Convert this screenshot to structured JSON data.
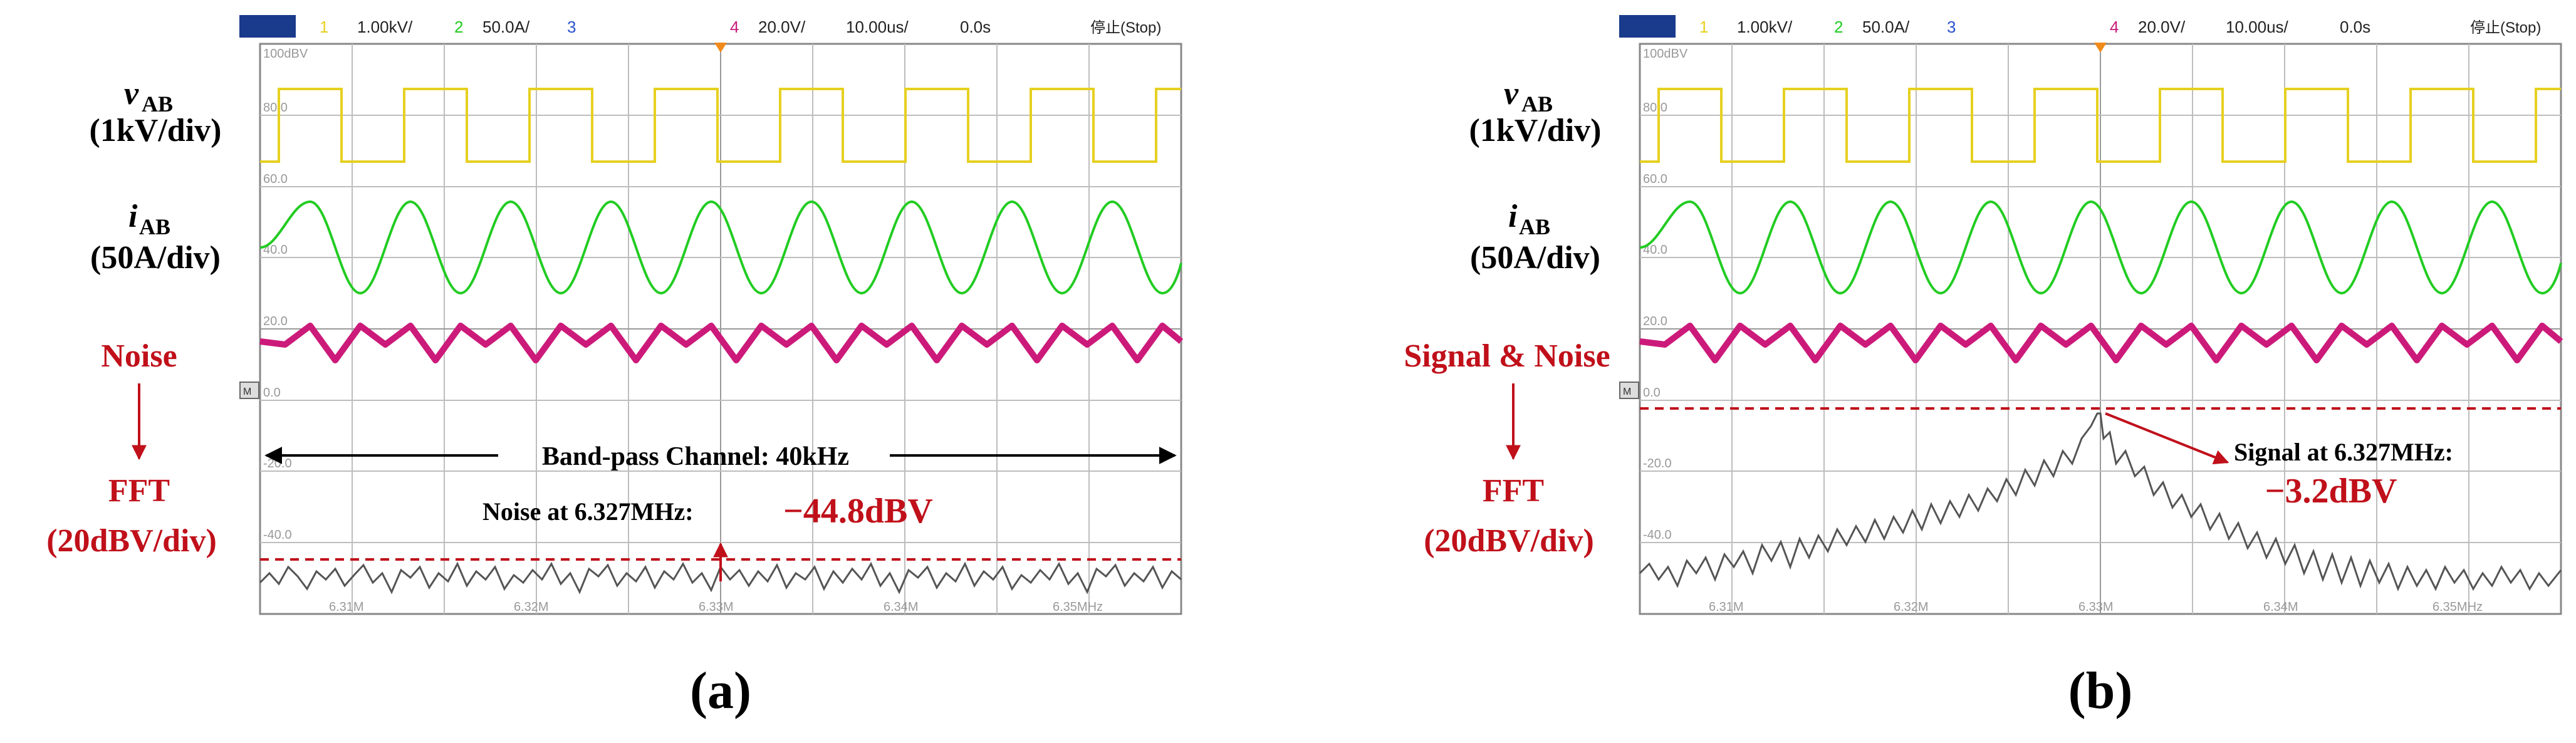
{
  "colors": {
    "ch1": "#e6d020",
    "ch2": "#22cc22",
    "ch3": "#2a52d0",
    "ch4": "#cc1a7a",
    "fft": "#555555",
    "annotation": "#c0101a",
    "grid": "#bdbdbd",
    "status_bar_bg": "#1a3a8c"
  },
  "icons": {
    "trigger_marker": "orange-triangle-down",
    "math_channel_marker": "math-icon"
  },
  "panels": [
    {
      "id": "a",
      "caption": "(a)",
      "status": {
        "ch1_num": "1",
        "ch1_scale": "1.00kV/",
        "ch2_num": "2",
        "ch2_scale": "50.0A/",
        "ch3_num": "3",
        "ch4_num": "4",
        "ch4_scale": "20.0V/",
        "timebase": "10.00us/",
        "delay": "0.0s",
        "run_state": "停止(Stop)"
      },
      "screen": {
        "top_scale": "100dBV",
        "v_labels": [
          "80.0",
          "60.0",
          "40.0",
          "20.0",
          "0.0",
          "-20.0",
          "-40.0"
        ],
        "freq_ticks": [
          "6.31M",
          "6.32M",
          "6.33M",
          "6.34M",
          "6.35MHz"
        ]
      },
      "labels": {
        "vab": "v",
        "vab_sub": "AB",
        "vab_scale": "(1kV/div)",
        "iab": "i",
        "iab_sub": "AB",
        "iab_scale": "(50A/div)",
        "source": "Noise",
        "fft": "FFT",
        "fft_scale": "(20dBV/div)"
      },
      "annotations": {
        "bandpass": "Band-pass Channel: 40kHz",
        "measure_prefix": "Noise at 6.327MHz:",
        "measure_value": "−44.8dBV"
      }
    },
    {
      "id": "b",
      "caption": "(b)",
      "status": {
        "ch1_num": "1",
        "ch1_scale": "1.00kV/",
        "ch2_num": "2",
        "ch2_scale": "50.0A/",
        "ch3_num": "3",
        "ch4_num": "4",
        "ch4_scale": "20.0V/",
        "timebase": "10.00us/",
        "delay": "0.0s",
        "run_state": "停止(Stop)"
      },
      "screen": {
        "top_scale": "100dBV",
        "v_labels": [
          "80.0",
          "60.0",
          "40.0",
          "20.0",
          "0.0",
          "-20.0",
          "-40.0"
        ],
        "freq_ticks": [
          "6.31M",
          "6.32M",
          "6.33M",
          "6.34M",
          "6.35MHz"
        ]
      },
      "labels": {
        "vab": "v",
        "vab_sub": "AB",
        "vab_scale": "(1kV/div)",
        "iab": "i",
        "iab_sub": "AB",
        "iab_scale": "(50A/div)",
        "source": "Signal & Noise",
        "fft": "FFT",
        "fft_scale": "(20dBV/div)"
      },
      "annotations": {
        "measure_prefix": "Signal at 6.327MHz:",
        "measure_value": "−3.2dBV"
      }
    }
  ]
}
